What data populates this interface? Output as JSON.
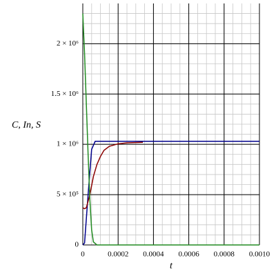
{
  "chart_data": {
    "type": "line",
    "y_label": "C, In, S",
    "x_label": "t",
    "xlim": [
      0,
      0.001
    ],
    "ylim": [
      0,
      2400000
    ],
    "xticks": [
      0,
      0.0002,
      0.0004,
      0.0006,
      0.0008,
      {
        "value": 0.001,
        "label": "0.0010"
      }
    ],
    "yticks": [
      0,
      {
        "value": 500000,
        "label": "5 × 10⁵"
      },
      {
        "value": 1000000,
        "label": "1 × 10⁶"
      },
      {
        "value": 1500000,
        "label": "1.5 × 10⁶"
      },
      {
        "value": 2000000,
        "label": "2 × 10⁶"
      }
    ],
    "grid": true,
    "minor_divisions": {
      "x": 4,
      "y": 5
    },
    "series": [
      {
        "color": "#00008b",
        "x": [
          0,
          1e-05,
          3e-05,
          5e-05,
          7e-05,
          0.001
        ],
        "values": [
          0,
          20000,
          500000,
          950000,
          1030000,
          1030000
        ]
      },
      {
        "color": "#8b0000",
        "x": [
          0,
          1e-05,
          2e-05,
          4e-05,
          6e-05,
          8e-05,
          0.0001,
          0.00012,
          0.00015,
          0.0002,
          0.00025,
          0.00034
        ],
        "values": [
          370000,
          360000,
          370000,
          500000,
          680000,
          800000,
          880000,
          940000,
          980000,
          1005000,
          1015000,
          1020000
        ]
      },
      {
        "color": "#228b22",
        "x": [
          0,
          1e-05,
          2e-05,
          3e-05,
          4e-05,
          5e-05,
          6e-05,
          8e-05,
          0.001
        ],
        "values": [
          2300000,
          1900000,
          1400000,
          900000,
          450000,
          150000,
          30000,
          0,
          0
        ]
      }
    ]
  }
}
